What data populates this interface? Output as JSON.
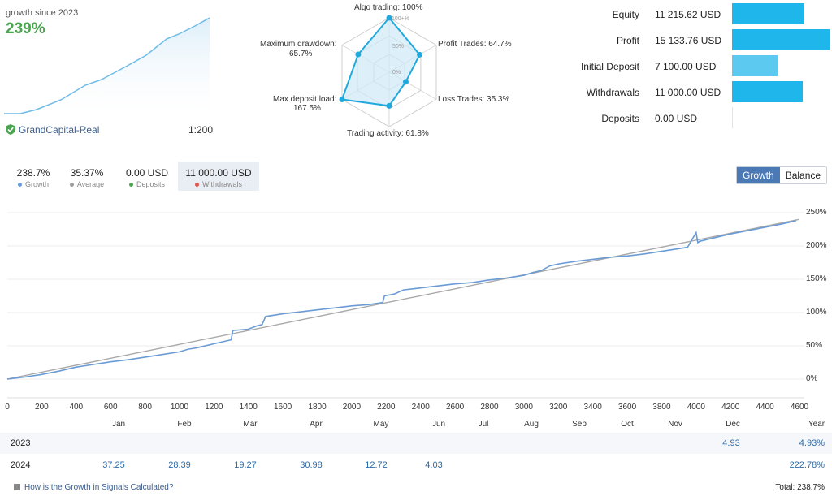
{
  "header": {
    "growth_label": "growth since 2023",
    "growth_value": "239%",
    "account_name": "GrandCapital-Real",
    "leverage": "1:200"
  },
  "radar": {
    "labels": {
      "algo": "Algo trading: 100%",
      "profit": "Profit Trades: 64.7%",
      "loss": "Loss Trades: 35.3%",
      "activity": "Trading activity: 61.8%",
      "deposit_load": "Max deposit load:",
      "deposit_load_val": "167.5%",
      "drawdown": "Maximum drawdown:",
      "drawdown_val": "65.7%"
    },
    "scale": {
      "100": "100+%",
      "50": "50%",
      "0": "0%"
    },
    "values": [
      100,
      64.7,
      35.3,
      61.8,
      100,
      65.7
    ]
  },
  "stats": [
    {
      "name": "Equity",
      "value": "11 215.62 USD",
      "bar": 0.741,
      "color": "#1fb6ec"
    },
    {
      "name": "Profit",
      "value": "15 133.76 USD",
      "bar": 1.0,
      "color": "#1fb6ec"
    },
    {
      "name": "Initial Deposit",
      "value": "7 100.00 USD",
      "bar": 0.469,
      "color": "#5ccaf0"
    },
    {
      "name": "Withdrawals",
      "value": "11 000.00 USD",
      "bar": 0.727,
      "color": "#1fb6ec"
    },
    {
      "name": "Deposits",
      "value": "0.00 USD",
      "bar": 0.0,
      "color": "#1fb6ec"
    }
  ],
  "summary": [
    {
      "value": "238.7%",
      "key": "Growth",
      "color": "#6a9bd6"
    },
    {
      "value": "35.37%",
      "key": "Average",
      "color": "#9e9e9e"
    },
    {
      "value": "0.00 USD",
      "key": "Deposits",
      "color": "#4aa54f"
    },
    {
      "value": "11 000.00 USD",
      "key": "Withdrawals",
      "color": "#e0574f"
    }
  ],
  "toggle": {
    "growth": "Growth",
    "balance": "Balance"
  },
  "chart_data": {
    "type": "line",
    "xlim": [
      0,
      4600
    ],
    "ylim": [
      -30,
      260
    ],
    "x_ticks": [
      "0",
      "200",
      "400",
      "600",
      "800",
      "1000",
      "1200",
      "1400",
      "1600",
      "1800",
      "2000",
      "2200",
      "2400",
      "2600",
      "2800",
      "3000",
      "3200",
      "3400",
      "3600",
      "3800",
      "4000",
      "4200",
      "4400",
      "4600"
    ],
    "y_ticks": [
      "250%",
      "200%",
      "150%",
      "100%",
      "50%",
      "0%"
    ],
    "series": [
      {
        "color": "#6a9bd6",
        "x": [
          0,
          100,
          200,
          300,
          400,
          500,
          600,
          700,
          800,
          900,
          1000,
          1050,
          1100,
          1200,
          1300,
          1310,
          1400,
          1450,
          1480,
          1500,
          1600,
          1700,
          1800,
          1900,
          2000,
          2100,
          2180,
          2190,
          2250,
          2300,
          2400,
          2500,
          2600,
          2700,
          2800,
          2900,
          3000,
          3050,
          3100,
          3150,
          3200,
          3300,
          3400,
          3500,
          3600,
          3700,
          3800,
          3900,
          3950,
          4000,
          4010,
          4020,
          4100,
          4200,
          4300,
          4400,
          4500,
          4580
        ],
        "y": [
          0,
          3,
          7,
          12,
          18,
          22,
          26,
          29,
          33,
          37,
          41,
          45,
          47,
          53,
          59,
          73,
          75,
          80,
          82,
          94,
          98,
          101,
          104,
          107,
          110,
          112,
          115,
          125,
          128,
          134,
          137,
          140,
          143,
          145,
          149,
          152,
          156,
          160,
          163,
          170,
          173,
          177,
          180,
          183,
          185,
          188,
          192,
          196,
          198,
          220,
          205,
          207,
          212,
          218,
          223,
          228,
          233,
          238
        ]
      },
      {
        "color": "#a8a8a8",
        "x": [
          0,
          4600
        ],
        "y": [
          0,
          240
        ]
      }
    ]
  },
  "months": [
    "Jan",
    "Feb",
    "Mar",
    "Apr",
    "May",
    "Jun",
    "Jul",
    "Aug",
    "Sep",
    "Oct",
    "Nov",
    "Dec",
    "Year"
  ],
  "table": [
    {
      "year": "2023",
      "cells": [
        "",
        "",
        "",
        "",
        "",
        "",
        "",
        "",
        "",
        "",
        "",
        "4.93"
      ],
      "total": "4.93%"
    },
    {
      "year": "2024",
      "cells": [
        "37.25",
        "28.39",
        "19.27",
        "30.98",
        "12.72",
        "4.03",
        "",
        "",
        "",
        "",
        "",
        ""
      ],
      "total": "222.78%"
    }
  ],
  "footer": {
    "link": "How is the Growth in Signals Calculated?",
    "total": "Total: 238.7%"
  }
}
